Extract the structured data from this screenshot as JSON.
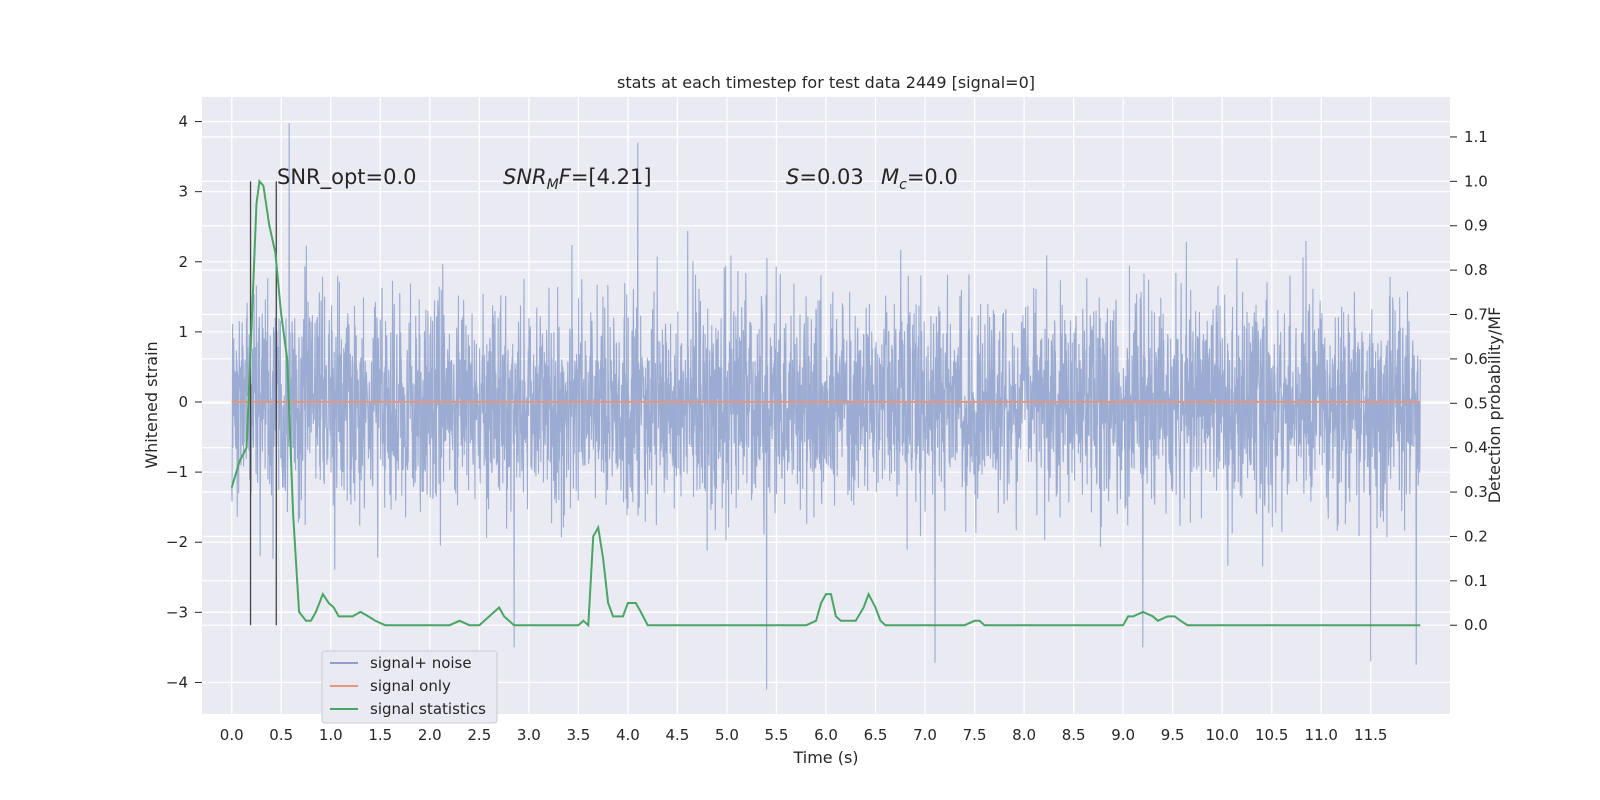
{
  "chart_data": {
    "type": "line",
    "title": "stats at each timestep for test data 2449 [signal=0]",
    "xlabel": "Time (s)",
    "ylabel_left": "Whitened strain",
    "ylabel_right": "Detection probability/MF",
    "x_ticks": [
      "0.0",
      "0.5",
      "1.0",
      "1.5",
      "2.0",
      "2.5",
      "3.0",
      "3.5",
      "4.0",
      "4.5",
      "5.0",
      "5.5",
      "6.0",
      "6.5",
      "7.0",
      "7.5",
      "8.0",
      "8.5",
      "9.0",
      "9.5",
      "10.0",
      "10.5",
      "11.0",
      "11.5"
    ],
    "y_left_ticks": [
      "4",
      "3",
      "2",
      "1",
      "0",
      "−1",
      "−2",
      "−3",
      "−4"
    ],
    "y_right_ticks": [
      "1.1",
      "1.0",
      "0.9",
      "0.8",
      "0.7",
      "0.6",
      "0.5",
      "0.4",
      "0.3",
      "0.2",
      "0.1",
      "0.0"
    ],
    "xlim": [
      -0.3,
      12.3
    ],
    "ylim_left": [
      -4.45,
      4.35
    ],
    "ylim_right": [
      -0.2,
      1.19
    ],
    "grid": true,
    "legend_position": "lower-left",
    "annotations": {
      "snr_opt": "SNR_opt=0.0",
      "snr_mf_sym": "SNR",
      "snr_mf_sub": "M",
      "snr_mf_sym2": "F",
      "snr_mf_val": "=[4.21]",
      "s_sym": "S",
      "s_val": "=0.03",
      "mc_sym": "M",
      "mc_sub": "c",
      "mc_val": "=0.0"
    },
    "vertical_lines_x": [
      0.19,
      0.45
    ],
    "series": [
      {
        "name": "signal+ noise",
        "color": "#8da0cb",
        "axis": "left",
        "style": "dense noise trace",
        "x_range": [
          0.0,
          12.0
        ],
        "envelope_typical": [
          -2.5,
          2.5
        ],
        "extremes": [
          {
            "x": 0.58,
            "y": 3.98
          },
          {
            "x": 4.1,
            "y": 3.7
          },
          {
            "x": 5.4,
            "y": -4.1
          },
          {
            "x": 11.96,
            "y": -3.75
          },
          {
            "x": 11.5,
            "y": -3.7
          },
          {
            "x": 7.1,
            "y": -3.72
          },
          {
            "x": 2.85,
            "y": -3.5
          },
          {
            "x": 9.2,
            "y": -3.5
          }
        ]
      },
      {
        "name": "signal only",
        "color": "#e5967e",
        "axis": "left",
        "x": [
          0.0,
          12.0
        ],
        "y": [
          0.0,
          0.0
        ]
      },
      {
        "name": "signal statistics",
        "color": "#4aa564",
        "axis": "right",
        "x": [
          0.0,
          0.08,
          0.15,
          0.2,
          0.25,
          0.28,
          0.32,
          0.38,
          0.44,
          0.5,
          0.56,
          0.62,
          0.68,
          0.75,
          0.8,
          0.85,
          0.92,
          0.98,
          1.03,
          1.08,
          1.15,
          1.22,
          1.3,
          1.38,
          1.45,
          1.55,
          1.7,
          2.0,
          2.1,
          2.2,
          2.3,
          2.4,
          2.5,
          2.6,
          2.65,
          2.7,
          2.75,
          2.85,
          2.9,
          3.0,
          3.3,
          3.5,
          3.55,
          3.6,
          3.65,
          3.7,
          3.75,
          3.8,
          3.85,
          3.9,
          3.95,
          4.0,
          4.08,
          4.13,
          4.2,
          4.3,
          4.4,
          4.6,
          5.0,
          5.5,
          5.8,
          5.9,
          5.95,
          6.0,
          6.05,
          6.1,
          6.15,
          6.22,
          6.3,
          6.38,
          6.43,
          6.5,
          6.55,
          6.6,
          6.65,
          6.7,
          6.8,
          7.0,
          7.4,
          7.5,
          7.55,
          7.6,
          7.7,
          7.8,
          8.0,
          8.2,
          8.4,
          8.6,
          8.8,
          8.95,
          9.0,
          9.05,
          9.1,
          9.2,
          9.3,
          9.35,
          9.45,
          9.52,
          9.58,
          9.65,
          9.8,
          10.0,
          10.5,
          11.0,
          11.5,
          11.8,
          12.0
        ],
        "y": [
          0.31,
          0.37,
          0.4,
          0.67,
          0.95,
          1.0,
          0.99,
          0.9,
          0.84,
          0.7,
          0.6,
          0.25,
          0.03,
          0.01,
          0.01,
          0.03,
          0.07,
          0.05,
          0.04,
          0.02,
          0.02,
          0.02,
          0.03,
          0.02,
          0.01,
          0.0,
          0.0,
          0.0,
          0.0,
          0.0,
          0.01,
          0.0,
          0.0,
          0.02,
          0.03,
          0.04,
          0.02,
          0.0,
          0.0,
          0.0,
          0.0,
          0.0,
          0.01,
          0.0,
          0.2,
          0.22,
          0.15,
          0.05,
          0.02,
          0.02,
          0.02,
          0.05,
          0.05,
          0.03,
          0.0,
          0.0,
          0.0,
          0.0,
          0.0,
          0.0,
          0.0,
          0.01,
          0.05,
          0.07,
          0.07,
          0.02,
          0.01,
          0.01,
          0.01,
          0.04,
          0.07,
          0.04,
          0.01,
          0.0,
          0.0,
          0.0,
          0.0,
          0.0,
          0.0,
          0.01,
          0.01,
          0.0,
          0.0,
          0.0,
          0.0,
          0.0,
          0.0,
          0.0,
          0.0,
          0.0,
          0.0,
          0.02,
          0.02,
          0.03,
          0.02,
          0.01,
          0.02,
          0.02,
          0.01,
          0.0,
          0.0,
          0.0,
          0.0,
          0.0,
          0.0,
          0.0,
          0.0
        ]
      }
    ]
  }
}
